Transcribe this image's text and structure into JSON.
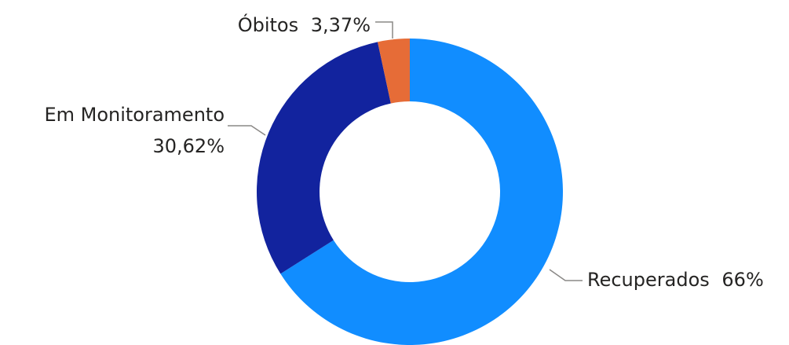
{
  "chart_data": {
    "type": "donut",
    "categories": [
      "Recuperados",
      "Em Monitoramento",
      "Óbitos"
    ],
    "values": [
      66,
      30.62,
      3.37
    ],
    "value_labels": [
      "66%",
      "30,62%",
      "3,37%"
    ],
    "colors": [
      "#118DFF",
      "#12239E",
      "#E66C37"
    ]
  }
}
